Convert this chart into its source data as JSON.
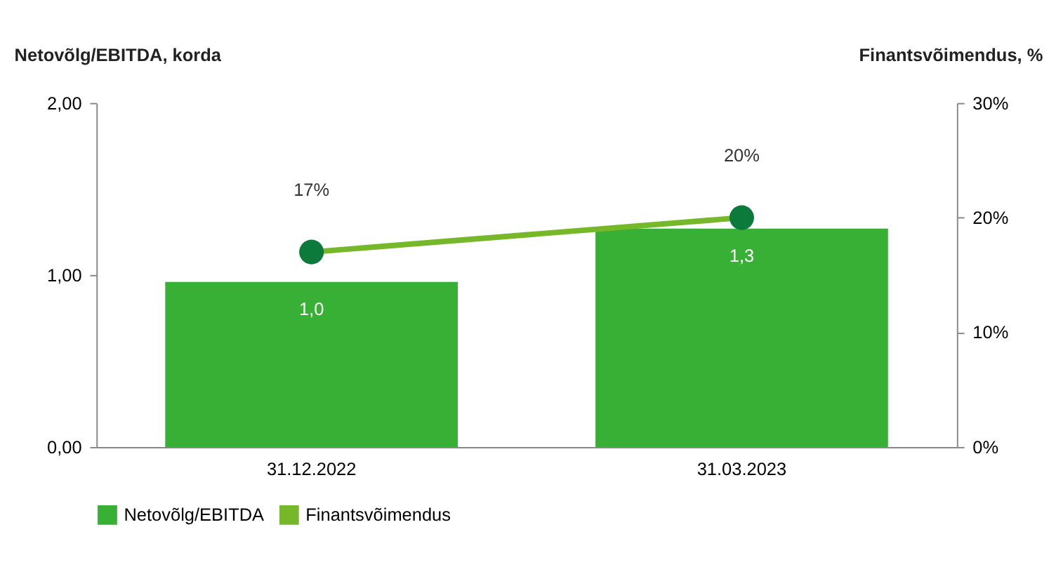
{
  "chart_data": {
    "type": "bar",
    "categories": [
      "31.12.2022",
      "31.03.2023"
    ],
    "ylabel": "Netovõlg/EBITDA, korda",
    "y2label": "Finantsvõimendus, %",
    "ylim": [
      0,
      2
    ],
    "yticks": [
      {
        "value": 0,
        "label": "0,00"
      },
      {
        "value": 1,
        "label": "1,00"
      },
      {
        "value": 2,
        "label": "2,00"
      }
    ],
    "y2lim": [
      0,
      30
    ],
    "y2ticks": [
      {
        "value": 0,
        "label": "0%"
      },
      {
        "value": 10,
        "label": "10%"
      },
      {
        "value": 20,
        "label": "20%"
      },
      {
        "value": 30,
        "label": "30%"
      }
    ],
    "series": [
      {
        "name": "Netovõlg/EBITDA",
        "color": "#38b035",
        "values": [
          0.96,
          1.27
        ],
        "value_labels": [
          "1,0",
          "1,3"
        ]
      },
      {
        "name": "Finantsvõimendus",
        "type": "line",
        "axis": "y2",
        "color": "#76b82a",
        "colors": [
          "#0b7a3a",
          "#0b7a3a"
        ],
        "values": [
          17,
          20
        ],
        "value_labels": [
          "17%",
          "20%"
        ]
      }
    ],
    "marker": "circle",
    "legend": "bottom",
    "grid": false
  }
}
